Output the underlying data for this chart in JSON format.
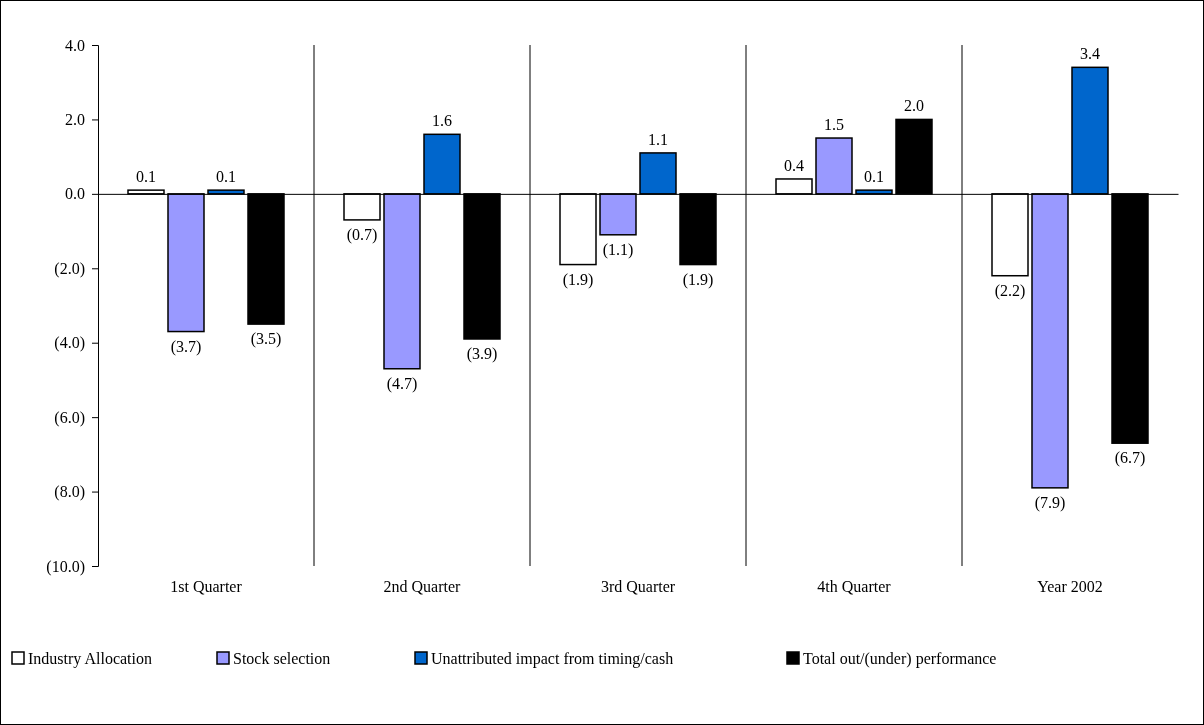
{
  "chart_data": {
    "type": "bar",
    "categories": [
      "1st Quarter",
      "2nd Quarter",
      "3rd Quarter",
      "4th Quarter",
      "Year 2002"
    ],
    "series": [
      {
        "name": "Industry Allocation",
        "color": "#ffffff",
        "values": [
          0.1,
          -0.7,
          -1.9,
          0.4,
          -2.2
        ],
        "value_labels": [
          "0.1",
          "(0.7)",
          "(1.9)",
          "0.4",
          "(2.2)"
        ]
      },
      {
        "name": "Stock selection",
        "color": "#9999ff",
        "values": [
          -3.7,
          -4.7,
          -1.1,
          1.5,
          -7.9
        ],
        "value_labels": [
          "(3.7)",
          "(4.7)",
          "(1.1)",
          "1.5",
          "(7.9)"
        ]
      },
      {
        "name": "Unattributed impact from timing/cash",
        "color": "#0066cc",
        "values": [
          0.1,
          1.6,
          1.1,
          0.1,
          3.4
        ],
        "value_labels": [
          "0.1",
          "1.6",
          "1.1",
          "0.1",
          "3.4"
        ]
      },
      {
        "name": "Total out/(under) performance",
        "color": "#000000",
        "values": [
          -3.5,
          -3.9,
          -1.9,
          2.0,
          -6.7
        ],
        "value_labels": [
          "(3.5)",
          "(3.9)",
          "(1.9)",
          "2.0",
          "(6.7)"
        ]
      }
    ],
    "ylim": [
      -10,
      4
    ],
    "yticks": [
      {
        "value": -10,
        "label": "(10.0)"
      },
      {
        "value": -8,
        "label": "(8.0)"
      },
      {
        "value": -6,
        "label": "(6.0)"
      },
      {
        "value": -4,
        "label": "(4.0)"
      },
      {
        "value": -2,
        "label": "(2.0)"
      },
      {
        "value": 0,
        "label": "0.0"
      },
      {
        "value": 2,
        "label": "2.0"
      },
      {
        "value": 4,
        "label": "4.0"
      }
    ],
    "legend": "bottom"
  }
}
